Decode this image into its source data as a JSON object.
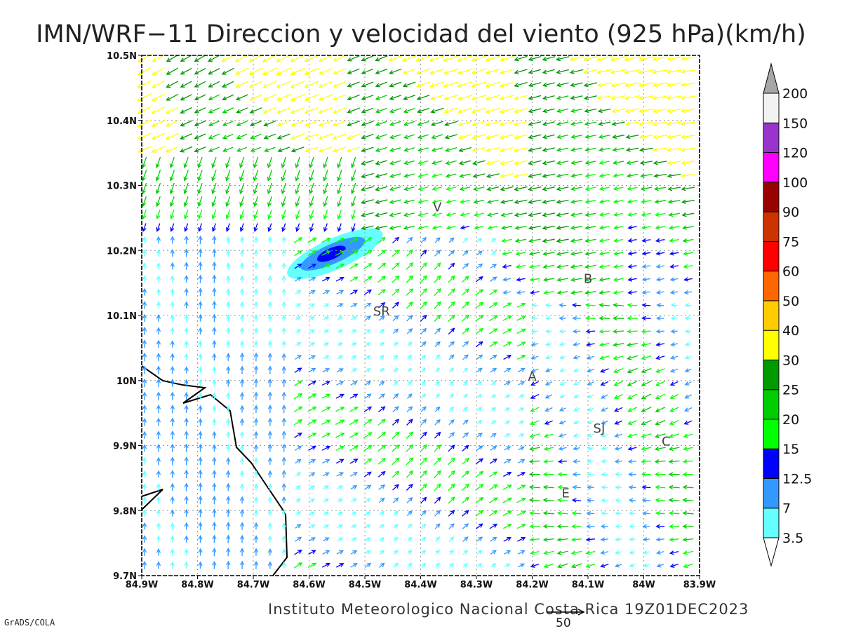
{
  "title": "IMN/WRF−11 Direccion y velocidad del viento (925 hPa)(km/h)",
  "credit": "Instituto Meteorologico Nacional Costa Rica 19Z01DEC2023",
  "software": "GrADS/COLA",
  "map": {
    "lon_range": [
      -84.9,
      -83.9
    ],
    "lat_range": [
      9.7,
      10.5
    ],
    "lon_tick_labels": [
      "84.9W",
      "84.8W",
      "84.7W",
      "84.6W",
      "84.5W",
      "84.4W",
      "84.3W",
      "84.2W",
      "84.1W",
      "84W",
      "83.9W"
    ],
    "lat_tick_labels": [
      "9.7N",
      "9.8N",
      "9.9N",
      "10N",
      "10.1N",
      "10.2N",
      "10.3N",
      "10.4N",
      "10.5N"
    ],
    "gridlines": true,
    "cities": [
      {
        "label": "V",
        "lon": -84.37,
        "lat": 10.26
      },
      {
        "label": "B",
        "lon": -84.1,
        "lat": 10.15
      },
      {
        "label": "SR",
        "lon": -84.47,
        "lat": 10.1
      },
      {
        "label": "A",
        "lon": -84.2,
        "lat": 10.0
      },
      {
        "label": "SJ",
        "lon": -84.08,
        "lat": 9.92
      },
      {
        "label": "C",
        "lon": -83.96,
        "lat": 9.9
      },
      {
        "label": "E",
        "lon": -84.14,
        "lat": 9.82
      }
    ],
    "reference_vector": {
      "label": "50"
    }
  },
  "colorbar": {
    "labels": [
      "3.5",
      "7",
      "12.5",
      "15",
      "20",
      "25",
      "30",
      "40",
      "50",
      "60",
      "75",
      "90",
      "100",
      "120",
      "150",
      "200"
    ],
    "colors": [
      "#ffffff",
      "#66ffff",
      "#3399ff",
      "#0000ff",
      "#00ff00",
      "#00cc00",
      "#009900",
      "#ffff00",
      "#ffcc00",
      "#ff6600",
      "#ff0000",
      "#cc3300",
      "#990000",
      "#ff00ff",
      "#9933cc",
      "#f2f2f2",
      "#a6a6a6"
    ]
  }
}
